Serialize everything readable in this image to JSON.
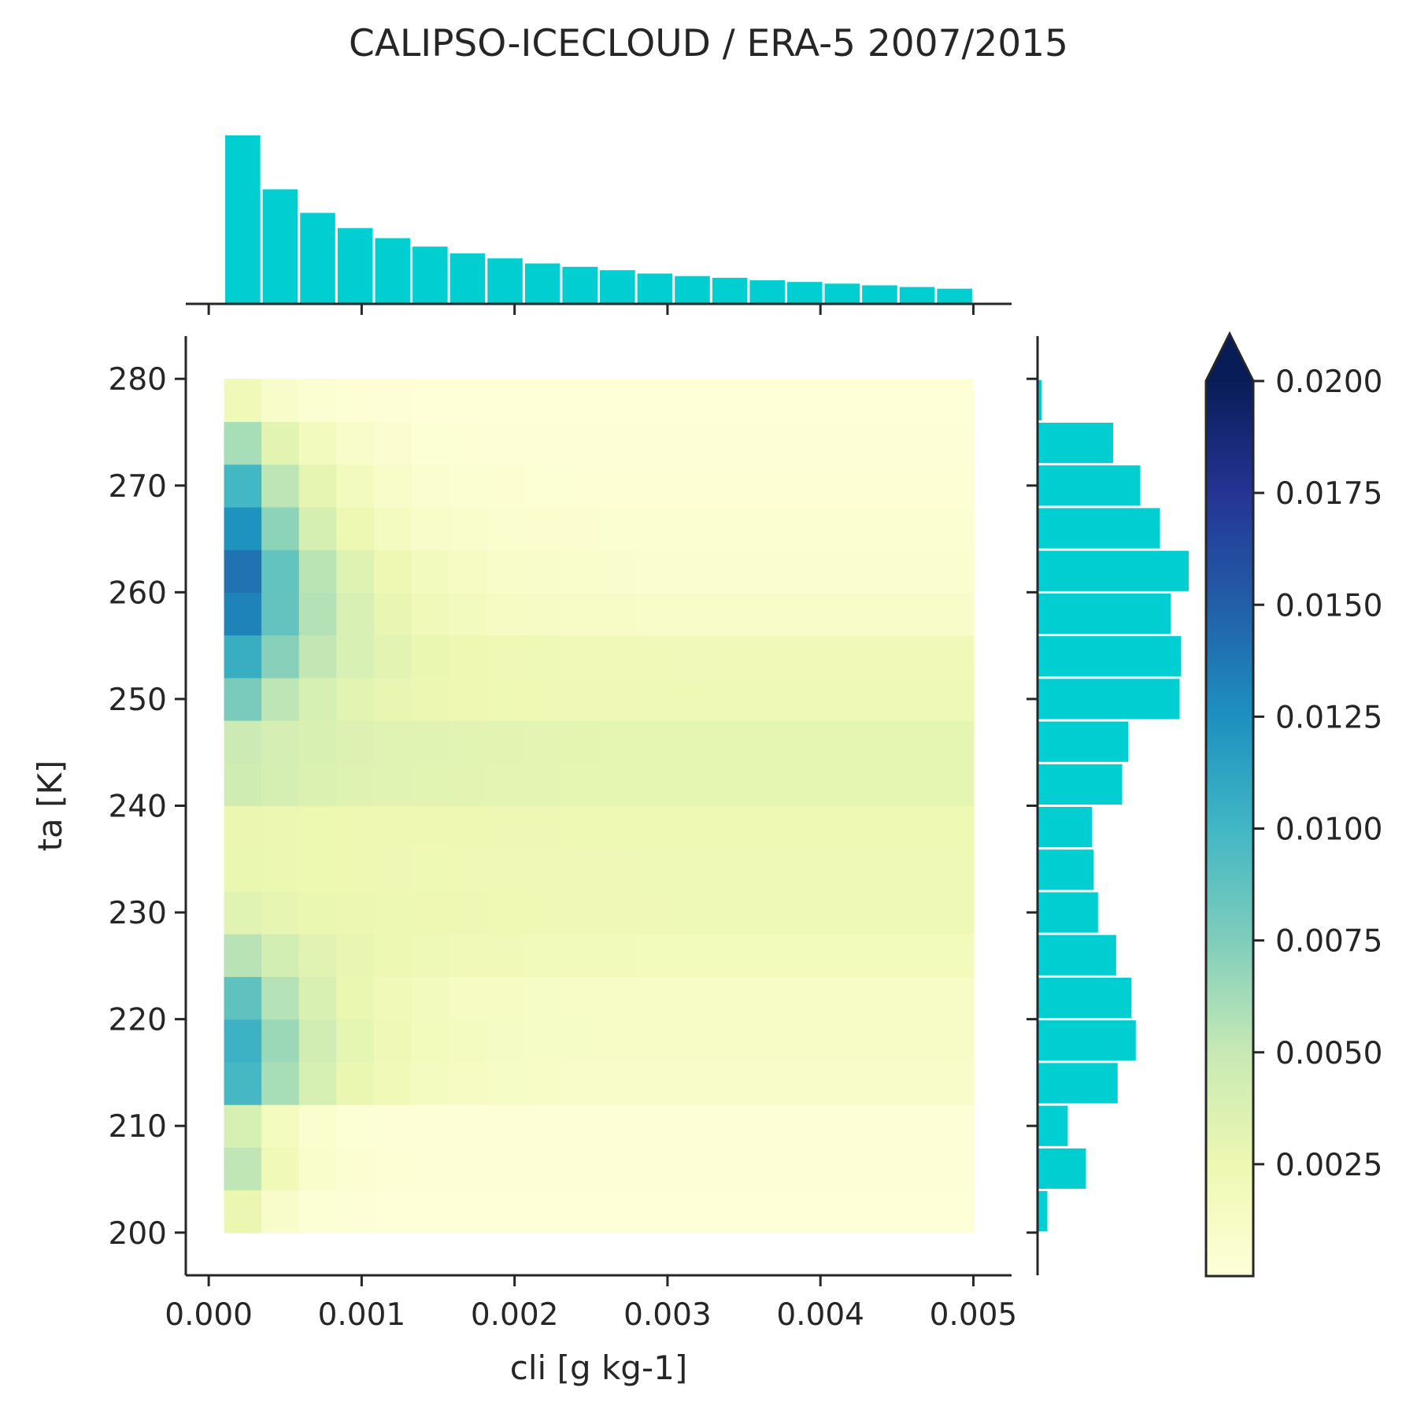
{
  "chart_data": {
    "type": "heatmap",
    "title": "CALIPSO-ICECLOUD / ERA-5 2007/2015",
    "xlabel": "cli [g kg-1]",
    "ylabel": "ta [K]",
    "xlim": [
      -0.00015,
      0.00525
    ],
    "ylim": [
      196,
      284
    ],
    "x_ticks": [
      0.0,
      0.001,
      0.002,
      0.003,
      0.004,
      0.005
    ],
    "x_tick_labels": [
      "0.000",
      "0.001",
      "0.002",
      "0.003",
      "0.004",
      "0.005"
    ],
    "y_ticks": [
      200,
      210,
      220,
      230,
      240,
      250,
      260,
      270,
      280
    ],
    "y_tick_labels": [
      "200",
      "210",
      "220",
      "230",
      "240",
      "250",
      "260",
      "270",
      "280"
    ],
    "x_bin_edges": [
      0.0001,
      0.000345,
      0.00059,
      0.000835,
      0.00108,
      0.001325,
      0.00157,
      0.001815,
      0.00206,
      0.002305,
      0.00255,
      0.002795,
      0.00304,
      0.003285,
      0.00353,
      0.003775,
      0.00402,
      0.004265,
      0.00451,
      0.004755,
      0.005
    ],
    "y_bin_edges": [
      200,
      204,
      208,
      212,
      216,
      220,
      224,
      228,
      232,
      236,
      240,
      244,
      248,
      252,
      256,
      260,
      264,
      268,
      272,
      276,
      280
    ],
    "colorbar": {
      "colormap": "YlGnBu",
      "vmin": 0.0,
      "vmax": 0.02,
      "extend": "max",
      "ticks": [
        0.0025,
        0.005,
        0.0075,
        0.01,
        0.0125,
        0.015,
        0.0175,
        0.02
      ],
      "tick_labels": [
        "0.0025",
        "0.0050",
        "0.0075",
        "0.0100",
        "0.0125",
        "0.0150",
        "0.0175",
        "0.0200"
      ]
    },
    "density_peak_by_ta_bin": [
      0.0045,
      0.0085,
      0.0065,
      0.0125,
      0.013,
      0.011,
      0.0065,
      0.0035,
      0.0028,
      0.0027,
      0.0048,
      0.005,
      0.0095,
      0.013,
      0.0165,
      0.018,
      0.0165,
      0.0135,
      0.0085,
      0.003
    ],
    "density_decay_by_ta_bin": [
      2.8,
      2.5,
      2.5,
      1.35,
      1.3,
      1.3,
      1.1,
      0.9,
      0.8,
      0.8,
      0.9,
      0.9,
      1.4,
      1.25,
      1.2,
      1.3,
      1.5,
      1.6,
      1.7,
      1.9
    ],
    "density_floor_by_ta_bin": [
      0.0001,
      0.0002,
      0.0002,
      0.001,
      0.0011,
      0.0011,
      0.0018,
      0.0022,
      0.0022,
      0.0023,
      0.003,
      0.003,
      0.0022,
      0.002,
      0.001,
      0.0007,
      0.0005,
      0.0003,
      0.0002,
      0.0001
    ],
    "marginal_x": [
      1.0,
      0.68,
      0.54,
      0.45,
      0.39,
      0.34,
      0.3,
      0.27,
      0.24,
      0.22,
      0.2,
      0.18,
      0.165,
      0.155,
      0.14,
      0.13,
      0.12,
      0.11,
      0.1,
      0.09
    ],
    "marginal_y": [
      0.065,
      0.32,
      0.2,
      0.53,
      0.65,
      0.62,
      0.52,
      0.4,
      0.37,
      0.36,
      0.56,
      0.6,
      0.94,
      0.95,
      0.88,
      1.0,
      0.81,
      0.68,
      0.5,
      0.026
    ],
    "colors": {
      "marginal_bars": "#00ced1",
      "axes": "#262626",
      "text": "#262626"
    }
  }
}
